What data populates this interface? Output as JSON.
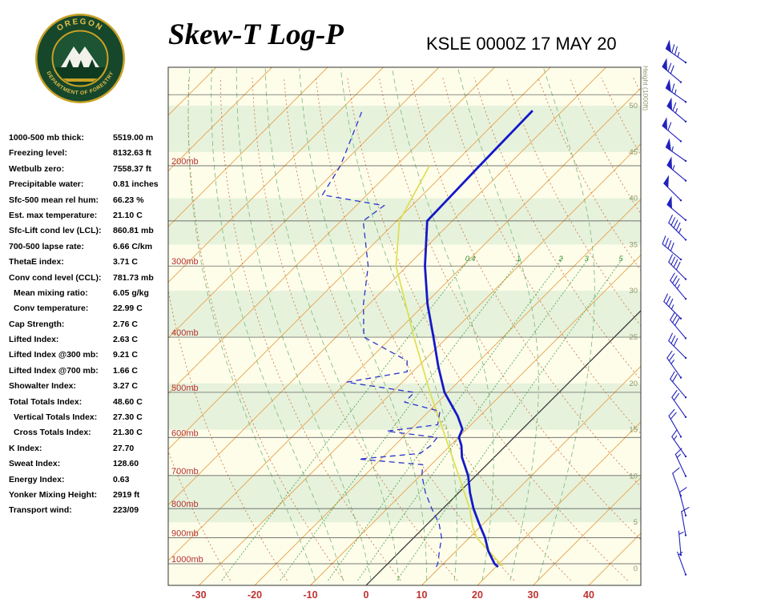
{
  "header": {
    "title": "Skew-T Log-P",
    "station": "KSLE 0000Z 17 MAY 20",
    "logo": {
      "text_top": "OREGON",
      "text_bottom": "DEPARTMENT OF FORESTRY"
    }
  },
  "stats": [
    {
      "label": "1000-500 mb thick:",
      "value": "5519.00 m",
      "indent": false
    },
    {
      "label": "Freezing level:",
      "value": "8132.63 ft",
      "indent": false
    },
    {
      "label": "Wetbulb zero:",
      "value": "7558.37 ft",
      "indent": false
    },
    {
      "label": "Precipitable water:",
      "value": "0.81 inches",
      "indent": false
    },
    {
      "label": "Sfc-500 mean rel hum:",
      "value": "66.23 %",
      "indent": false
    },
    {
      "label": "Est. max temperature:",
      "value": "21.10 C",
      "indent": false
    },
    {
      "label": "Sfc-Lift cond lev (LCL):",
      "value": "860.81 mb",
      "indent": false
    },
    {
      "label": "700-500 lapse rate:",
      "value": "6.66 C/km",
      "indent": false
    },
    {
      "label": "ThetaE index:",
      "value": "3.71 C",
      "indent": false
    },
    {
      "label": "Conv cond level (CCL):",
      "value": "781.73 mb",
      "indent": false
    },
    {
      "label": "Mean mixing ratio:",
      "value": "6.05 g/kg",
      "indent": true
    },
    {
      "label": "Conv temperature:",
      "value": "22.99 C",
      "indent": true
    },
    {
      "label": "Cap Strength:",
      "value": "2.76 C",
      "indent": false
    },
    {
      "label": "Lifted Index:",
      "value": "2.63 C",
      "indent": false
    },
    {
      "label": "Lifted Index @300 mb:",
      "value": "9.21 C",
      "indent": false
    },
    {
      "label": "Lifted Index @700 mb:",
      "value": "1.66 C",
      "indent": false
    },
    {
      "label": "Showalter Index:",
      "value": "3.27 C",
      "indent": false
    },
    {
      "label": "Total Totals Index:",
      "value": "48.60 C",
      "indent": false
    },
    {
      "label": "Vertical Totals Index:",
      "value": "27.30 C",
      "indent": true
    },
    {
      "label": "Cross Totals Index:",
      "value": "21.30 C",
      "indent": true
    },
    {
      "label": "K Index:",
      "value": "27.70",
      "indent": false
    },
    {
      "label": "Sweat Index:",
      "value": "128.60",
      "indent": false
    },
    {
      "label": "Energy Index:",
      "value": "0.63",
      "indent": false
    },
    {
      "label": "Yonker Mixing Height:",
      "value": "2919 ft",
      "indent": false
    },
    {
      "label": "Transport wind:",
      "value": "223/09",
      "indent": false
    }
  ],
  "chart_data": {
    "type": "skewt-log-p",
    "title": "Skew-T Log-P",
    "station": "KSLE 0000Z 17 MAY 20",
    "pressure_labels_mb": [
      200,
      300,
      400,
      500,
      600,
      700,
      800,
      900,
      1000
    ],
    "isobar_lines_mb": [
      150,
      200,
      250,
      300,
      400,
      500,
      600,
      700,
      800,
      900,
      1000
    ],
    "temp_axis_c": [
      -30,
      -20,
      -10,
      0,
      10,
      20,
      30,
      40
    ],
    "height_axis_kft": [
      0,
      5,
      10,
      15,
      20,
      25,
      30,
      35,
      40,
      45,
      50
    ],
    "height_axis_title": "Height (1000ft)",
    "mixing_ratio_lines_gkg": [
      0.4,
      1,
      2,
      3,
      5
    ],
    "moist_adiabat_starts_c": [
      -10,
      -5,
      0,
      5,
      10,
      15,
      20,
      25,
      30
    ],
    "dry_adiabat_theta_c": {
      "min": -30,
      "max": 130,
      "step": 10
    },
    "isotherms_c": {
      "min": -120,
      "max": 50,
      "step": 10
    },
    "sounding": {
      "temperature_p_t": [
        [
          1013,
          20.4
        ],
        [
          1000,
          19.2
        ],
        [
          950,
          15.8
        ],
        [
          900,
          12.8
        ],
        [
          850,
          9.2
        ],
        [
          800,
          5.5
        ],
        [
          750,
          2.0
        ],
        [
          700,
          -1.4
        ],
        [
          650,
          -5.8
        ],
        [
          620,
          -8.0
        ],
        [
          600,
          -9.9
        ],
        [
          580,
          -10.8
        ],
        [
          550,
          -14.0
        ],
        [
          500,
          -20.6
        ],
        [
          450,
          -26.4
        ],
        [
          400,
          -32.5
        ],
        [
          350,
          -39.5
        ],
        [
          300,
          -46.8
        ],
        [
          250,
          -54.5
        ],
        [
          200,
          -55.0
        ],
        [
          160,
          -55.4
        ]
      ],
      "dewpoint_p_td": [
        [
          1013,
          9.3
        ],
        [
          1000,
          9.0
        ],
        [
          950,
          7.0
        ],
        [
          900,
          5.0
        ],
        [
          850,
          2.0
        ],
        [
          800,
          -2.0
        ],
        [
          750,
          -6.0
        ],
        [
          700,
          -9.7
        ],
        [
          670,
          -11.5
        ],
        [
          655,
          -24.0
        ],
        [
          640,
          -14.0
        ],
        [
          620,
          -13.5
        ],
        [
          600,
          -13.8
        ],
        [
          585,
          -24.0
        ],
        [
          570,
          -16.0
        ],
        [
          555,
          -17.0
        ],
        [
          540,
          -18.0
        ],
        [
          520,
          -26.0
        ],
        [
          500,
          -26.0
        ],
        [
          480,
          -40.0
        ],
        [
          460,
          -31.0
        ],
        [
          440,
          -33.0
        ],
        [
          400,
          -45.0
        ],
        [
          350,
          -51.0
        ],
        [
          300,
          -57.0
        ],
        [
          250,
          -66.0
        ],
        [
          235,
          -65.0
        ],
        [
          225,
          -78.0
        ],
        [
          200,
          -80.0
        ],
        [
          160,
          -86.0
        ]
      ],
      "parcel_p_t": [
        [
          1010,
          21.1
        ],
        [
          900,
          11.3
        ],
        [
          861,
          8.6
        ],
        [
          800,
          4.8
        ],
        [
          700,
          -3.1
        ],
        [
          600,
          -12.3
        ],
        [
          500,
          -23.2
        ],
        [
          400,
          -36.0
        ],
        [
          300,
          -52.0
        ],
        [
          250,
          -59.5
        ],
        [
          200,
          -64.0
        ]
      ]
    },
    "wind_barbs_top_to_bottom": [
      {
        "dir": 235,
        "spd": 75
      },
      {
        "dir": 230,
        "spd": 70
      },
      {
        "dir": 235,
        "spd": 65
      },
      {
        "dir": 230,
        "spd": 65
      },
      {
        "dir": 230,
        "spd": 60
      },
      {
        "dir": 235,
        "spd": 55
      },
      {
        "dir": 230,
        "spd": 55
      },
      {
        "dir": 225,
        "spd": 50
      },
      {
        "dir": 230,
        "spd": 50
      },
      {
        "dir": 225,
        "spd": 45
      },
      {
        "dir": 230,
        "spd": 40
      },
      {
        "dir": 225,
        "spd": 40
      },
      {
        "dir": 220,
        "spd": 35
      },
      {
        "dir": 225,
        "spd": 35
      },
      {
        "dir": 220,
        "spd": 30
      },
      {
        "dir": 225,
        "spd": 30
      },
      {
        "dir": 215,
        "spd": 25
      },
      {
        "dir": 220,
        "spd": 22
      },
      {
        "dir": 215,
        "spd": 20
      },
      {
        "dir": 210,
        "spd": 20
      },
      {
        "dir": 215,
        "spd": 15
      },
      {
        "dir": 205,
        "spd": 15
      },
      {
        "dir": 200,
        "spd": 12
      },
      {
        "dir": 195,
        "spd": 10
      },
      {
        "dir": 190,
        "spd": 10
      },
      {
        "dir": 185,
        "spd": 8
      },
      {
        "dir": 200,
        "spd": 5
      }
    ],
    "colors": {
      "band_cream": "#fdfdea",
      "band_green": "#e6f2dc",
      "isotherm": "#e8a14b",
      "zero_isotherm": "#2f2f2f",
      "dry_adiabat": "#d4703d",
      "moist_adiabat": "#7ab87a",
      "mixing_ratio": "#46a046",
      "mixing_label": "#2f8f2f",
      "isobar": "#4a4a4a",
      "pressure_label": "#b43232",
      "temp_axis_label": "#c03030",
      "height_label": "#8d9768",
      "temperature": "#1519c8",
      "dewpoint": "#2a35cc",
      "parcel": "#dede52",
      "wind": "#2222bb",
      "frame": "#333333"
    }
  }
}
